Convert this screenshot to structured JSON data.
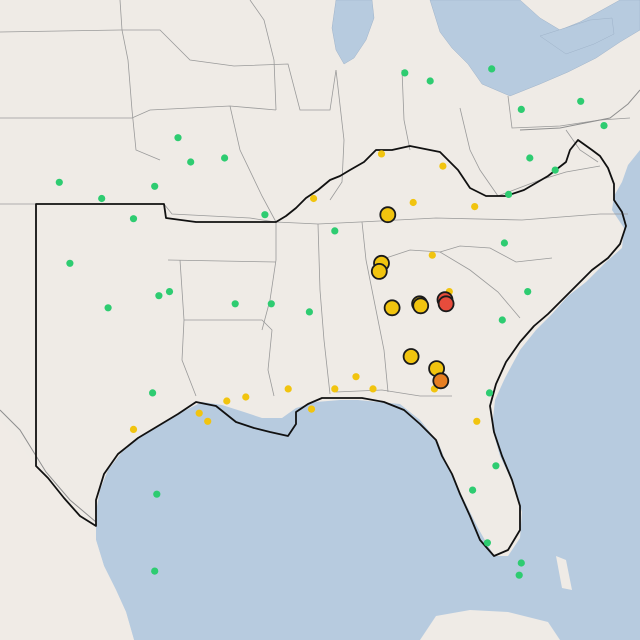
{
  "colors": {
    "good": "#2ecc71",
    "moderate": "#f1c40f",
    "usg": "#e67e22",
    "unhealthy": "#e74c3c",
    "no_data": "#bdbdbd"
  },
  "markers": [
    {
      "lon": -96.4,
      "lat": 36.6,
      "level": "good",
      "size": "small"
    },
    {
      "lon": -95.8,
      "lat": 36.0,
      "level": "good",
      "size": "small"
    },
    {
      "lon": -97.5,
      "lat": 35.4,
      "level": "good",
      "size": "small"
    },
    {
      "lon": -98.5,
      "lat": 34.6,
      "level": "good",
      "size": "small"
    },
    {
      "lon": -100.0,
      "lat": 35.1,
      "level": "good",
      "size": "small"
    },
    {
      "lon": -102.0,
      "lat": 35.5,
      "level": "good",
      "size": "small"
    },
    {
      "lon": -101.5,
      "lat": 33.5,
      "level": "good",
      "size": "small"
    },
    {
      "lon": -99.7,
      "lat": 32.4,
      "level": "good",
      "size": "small"
    },
    {
      "lon": -97.3,
      "lat": 32.7,
      "level": "good",
      "size": "small"
    },
    {
      "lon": -96.8,
      "lat": 32.8,
      "level": "good",
      "size": "small"
    },
    {
      "lon": -97.6,
      "lat": 30.3,
      "level": "good",
      "size": "small"
    },
    {
      "lon": -98.5,
      "lat": 29.4,
      "level": "moderate",
      "size": "small"
    },
    {
      "lon": -95.4,
      "lat": 29.8,
      "level": "moderate",
      "size": "small"
    },
    {
      "lon": -95.0,
      "lat": 29.6,
      "level": "moderate",
      "size": "small"
    },
    {
      "lon": -94.1,
      "lat": 30.1,
      "level": "moderate",
      "size": "small"
    },
    {
      "lon": -93.2,
      "lat": 30.2,
      "level": "moderate",
      "size": "small"
    },
    {
      "lon": -91.2,
      "lat": 30.4,
      "level": "moderate",
      "size": "small"
    },
    {
      "lon": -90.1,
      "lat": 29.9,
      "level": "moderate",
      "size": "small"
    },
    {
      "lon": -89.0,
      "lat": 30.4,
      "level": "moderate",
      "size": "small"
    },
    {
      "lon": -88.0,
      "lat": 30.7,
      "level": "moderate",
      "size": "small"
    },
    {
      "lon": -87.2,
      "lat": 30.4,
      "level": "moderate",
      "size": "small"
    },
    {
      "lon": -97.4,
      "lat": 27.8,
      "level": "good",
      "size": "small"
    },
    {
      "lon": -97.5,
      "lat": 25.9,
      "level": "good",
      "size": "small"
    },
    {
      "lon": -92.0,
      "lat": 32.5,
      "level": "good",
      "size": "small"
    },
    {
      "lon": -93.7,
      "lat": 32.5,
      "level": "good",
      "size": "small"
    },
    {
      "lon": -92.3,
      "lat": 34.7,
      "level": "good",
      "size": "small"
    },
    {
      "lon": -94.2,
      "lat": 36.1,
      "level": "good",
      "size": "small"
    },
    {
      "lon": -90.2,
      "lat": 32.3,
      "level": "good",
      "size": "small"
    },
    {
      "lon": -89.0,
      "lat": 34.3,
      "level": "good",
      "size": "small"
    },
    {
      "lon": -90.0,
      "lat": 35.1,
      "level": "moderate",
      "size": "small"
    },
    {
      "lon": -86.8,
      "lat": 36.2,
      "level": "moderate",
      "size": "small"
    },
    {
      "lon": -85.3,
      "lat": 35.0,
      "level": "moderate",
      "size": "small"
    },
    {
      "lon": -83.9,
      "lat": 35.9,
      "level": "moderate",
      "size": "small"
    },
    {
      "lon": -84.4,
      "lat": 33.7,
      "level": "moderate",
      "size": "small"
    },
    {
      "lon": -83.6,
      "lat": 32.8,
      "level": "moderate",
      "size": "small"
    },
    {
      "lon": -82.4,
      "lat": 34.9,
      "level": "moderate",
      "size": "small"
    },
    {
      "lon": -81.0,
      "lat": 34.0,
      "level": "good",
      "size": "small"
    },
    {
      "lon": -80.8,
      "lat": 35.2,
      "level": "good",
      "size": "small"
    },
    {
      "lon": -79.8,
      "lat": 36.1,
      "level": "good",
      "size": "small"
    },
    {
      "lon": -78.6,
      "lat": 35.8,
      "level": "good",
      "size": "small"
    },
    {
      "lon": -77.4,
      "lat": 37.5,
      "level": "good",
      "size": "small"
    },
    {
      "lon": -76.3,
      "lat": 36.9,
      "level": "good",
      "size": "small"
    },
    {
      "lon": -80.2,
      "lat": 37.3,
      "level": "good",
      "size": "small"
    },
    {
      "lon": -81.6,
      "lat": 38.3,
      "level": "good",
      "size": "small"
    },
    {
      "lon": -84.5,
      "lat": 38.0,
      "level": "good",
      "size": "small"
    },
    {
      "lon": -85.7,
      "lat": 38.2,
      "level": "good",
      "size": "small"
    },
    {
      "lon": -81.1,
      "lat": 32.1,
      "level": "good",
      "size": "small"
    },
    {
      "lon": -79.9,
      "lat": 32.8,
      "level": "good",
      "size": "small"
    },
    {
      "lon": -81.7,
      "lat": 30.3,
      "level": "good",
      "size": "small"
    },
    {
      "lon": -82.5,
      "lat": 27.9,
      "level": "good",
      "size": "small"
    },
    {
      "lon": -81.4,
      "lat": 28.5,
      "level": "good",
      "size": "small"
    },
    {
      "lon": -80.2,
      "lat": 26.1,
      "level": "good",
      "size": "small"
    },
    {
      "lon": -80.3,
      "lat": 25.8,
      "level": "good",
      "size": "small"
    },
    {
      "lon": -81.8,
      "lat": 26.6,
      "level": "good",
      "size": "small"
    },
    {
      "lon": -82.3,
      "lat": 29.6,
      "level": "moderate",
      "size": "small"
    },
    {
      "lon": -84.3,
      "lat": 30.4,
      "level": "moderate",
      "size": "small"
    },
    {
      "lon": -86.5,
      "lat": 34.7,
      "level": "large",
      "size": "large",
      "big_level": "moderate"
    },
    {
      "lon": -86.8,
      "lat": 33.5,
      "level": "moderate",
      "size": "large"
    },
    {
      "lon": -86.9,
      "lat": 33.3,
      "level": "moderate",
      "size": "large"
    },
    {
      "lon": -86.3,
      "lat": 32.4,
      "level": "moderate",
      "size": "large"
    },
    {
      "lon": -85.0,
      "lat": 32.5,
      "level": "moderate",
      "size": "large"
    },
    {
      "lon": -84.95,
      "lat": 32.45,
      "level": "moderate",
      "size": "large"
    },
    {
      "lon": -83.8,
      "lat": 32.6,
      "level": "unhealthy",
      "size": "large"
    },
    {
      "lon": -83.75,
      "lat": 32.5,
      "level": "unhealthy",
      "size": "large"
    },
    {
      "lon": -85.4,
      "lat": 31.2,
      "level": "moderate",
      "size": "large"
    },
    {
      "lon": -84.2,
      "lat": 30.9,
      "level": "moderate",
      "size": "large"
    },
    {
      "lon": -84.0,
      "lat": 30.6,
      "level": "usg",
      "size": "large"
    }
  ]
}
